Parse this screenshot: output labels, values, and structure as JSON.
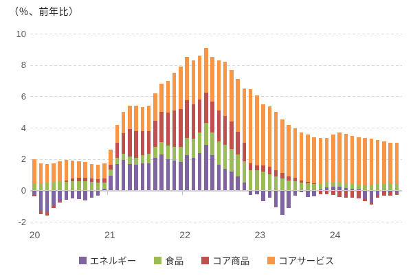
{
  "title": "（％、前年比）",
  "legend": {
    "items": [
      {
        "label": "エネルギー",
        "color": "#8064A2"
      },
      {
        "label": "食品",
        "color": "#9BBB59"
      },
      {
        "label": "コア商品",
        "color": "#C0504D"
      },
      {
        "label": "コアサービス",
        "color": "#F79646"
      }
    ]
  },
  "chart_data": {
    "type": "bar",
    "stacked": true,
    "title": "（％、前年比）",
    "ylabel": "",
    "xlabel": "",
    "unit": "percent, year-over-year",
    "ylim": [
      -2,
      10
    ],
    "y_ticks": [
      -2,
      0,
      2,
      4,
      6,
      8,
      10
    ],
    "grid": "horizontal-dashed",
    "legend_position": "bottom",
    "x_tick_labels": [
      "20",
      "21",
      "22",
      "23",
      "24"
    ],
    "x": [
      "2020-03",
      "2020-04",
      "2020-05",
      "2020-06",
      "2020-07",
      "2020-08",
      "2020-09",
      "2020-10",
      "2020-11",
      "2020-12",
      "2021-01",
      "2021-02",
      "2021-03",
      "2021-04",
      "2021-05",
      "2021-06",
      "2021-07",
      "2021-08",
      "2021-09",
      "2021-10",
      "2021-11",
      "2021-12",
      "2022-01",
      "2022-02",
      "2022-03",
      "2022-04",
      "2022-05",
      "2022-06",
      "2022-07",
      "2022-08",
      "2022-09",
      "2022-10",
      "2022-11",
      "2022-12",
      "2023-01",
      "2023-02",
      "2023-03",
      "2023-04",
      "2023-05",
      "2023-06",
      "2023-07",
      "2023-08",
      "2023-09",
      "2023-10",
      "2023-11",
      "2023-12",
      "2024-01",
      "2024-02",
      "2024-03",
      "2024-04",
      "2024-05",
      "2024-06",
      "2024-07",
      "2024-08",
      "2024-09",
      "2024-10",
      "2024-11",
      "2024-12"
    ],
    "series": [
      {
        "name": "エネルギー",
        "color": "#8064A2",
        "values": [
          -0.3,
          -1.3,
          -1.4,
          -0.95,
          -0.7,
          -0.6,
          -0.52,
          -0.56,
          -0.62,
          -0.47,
          -0.33,
          0.1,
          0.95,
          1.7,
          1.95,
          1.7,
          1.65,
          1.75,
          1.75,
          2.1,
          2.3,
          2.0,
          1.9,
          1.8,
          2.25,
          2.1,
          2.4,
          2.9,
          2.25,
          1.65,
          1.4,
          1.2,
          0.9,
          0.5,
          -0.3,
          -0.26,
          -0.69,
          -0.47,
          -1.06,
          -1.55,
          -1.13,
          -0.33,
          -0.11,
          -0.4,
          -0.36,
          0.05,
          0.2,
          0.22,
          0.25,
          0.15,
          0.1,
          0.05,
          -0.55,
          -0.75,
          -0.35,
          -0.05,
          -0.1,
          -0.15
        ]
      },
      {
        "name": "食品",
        "color": "#9BBB59",
        "values": [
          0.45,
          0.47,
          0.52,
          0.55,
          0.58,
          0.55,
          0.58,
          0.6,
          0.58,
          0.55,
          0.52,
          0.42,
          0.4,
          0.4,
          0.4,
          0.45,
          0.45,
          0.5,
          0.6,
          0.7,
          0.8,
          0.85,
          0.9,
          1.0,
          1.1,
          1.2,
          1.3,
          1.4,
          1.45,
          1.5,
          1.5,
          1.45,
          1.4,
          1.35,
          1.3,
          1.3,
          1.2,
          1.05,
          0.9,
          0.75,
          0.65,
          0.6,
          0.5,
          0.45,
          0.4,
          0.35,
          0.33,
          0.3,
          0.3,
          0.3,
          0.32,
          0.33,
          0.38,
          0.38,
          0.4,
          0.4,
          0.4,
          0.42
        ]
      },
      {
        "name": "コア商品",
        "color": "#C0504D",
        "values": [
          -0.08,
          -0.2,
          -0.2,
          -0.15,
          -0.07,
          0.1,
          0.18,
          0.22,
          0.22,
          0.2,
          0.22,
          0.25,
          0.3,
          0.95,
          1.3,
          1.75,
          1.7,
          1.55,
          1.45,
          1.65,
          1.9,
          2.1,
          2.3,
          2.4,
          2.4,
          2.2,
          2.1,
          1.95,
          1.95,
          1.95,
          1.85,
          1.75,
          1.45,
          1.2,
          0.45,
          0.3,
          0.4,
          0.45,
          0.4,
          0.35,
          0.25,
          0.2,
          0.15,
          0.1,
          0.05,
          -0.25,
          -0.25,
          -0.3,
          -0.4,
          -0.45,
          -0.45,
          -0.5,
          -0.15,
          -0.15,
          -0.1,
          -0.3,
          -0.25,
          -0.15
        ]
      },
      {
        "name": "コアサービス",
        "color": "#F79646",
        "values": [
          1.55,
          1.25,
          1.15,
          1.2,
          1.28,
          1.28,
          1.14,
          1.04,
          1.03,
          0.93,
          0.92,
          0.97,
          0.95,
          1.15,
          1.35,
          1.5,
          1.6,
          1.5,
          1.6,
          1.75,
          1.8,
          2.05,
          2.4,
          2.7,
          2.75,
          2.8,
          2.8,
          2.85,
          2.85,
          3.2,
          3.45,
          3.3,
          3.35,
          3.45,
          4.7,
          4.45,
          3.9,
          3.85,
          3.7,
          3.45,
          3.3,
          3.15,
          3.05,
          3.0,
          2.95,
          2.95,
          2.82,
          3.03,
          3.15,
          3.15,
          3.08,
          3.02,
          2.97,
          2.92,
          2.8,
          2.75,
          2.65,
          2.63
        ]
      }
    ]
  }
}
